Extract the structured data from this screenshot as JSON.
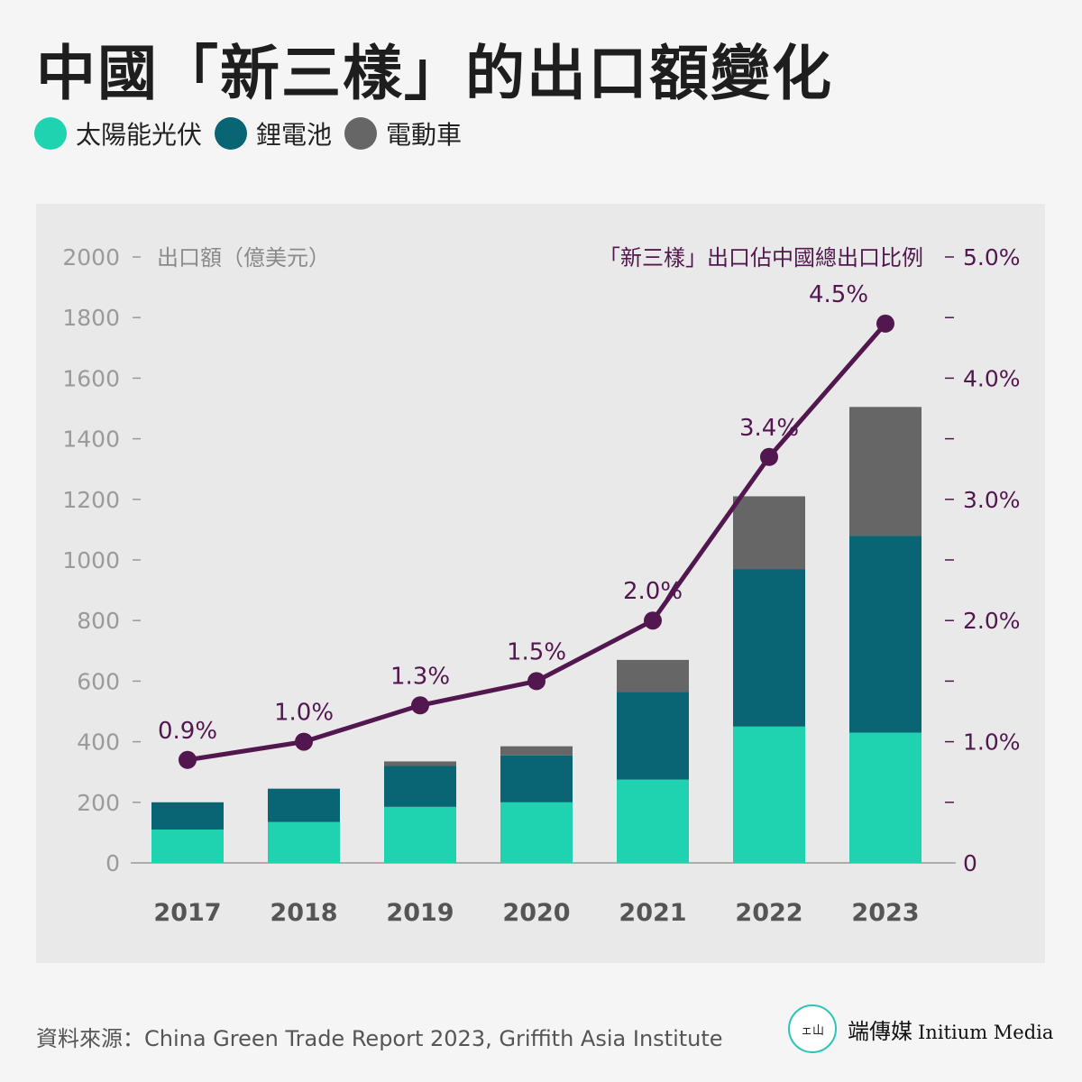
{
  "title": "中國「新三樣」的出口額變化",
  "source": "資料來源：China Green Trade Report 2023, Griffith Asia Institute",
  "brand": {
    "zh": "端傳媒",
    "en": "Initium Media",
    "logo_glyph": "ェ山"
  },
  "legend": [
    {
      "label": "太陽能光伏",
      "color": "#1fd3b1"
    },
    {
      "label": "鋰電池",
      "color": "#096473"
    },
    {
      "label": "電動車",
      "color": "#666666"
    }
  ],
  "chart_data": {
    "type": "bar",
    "stacked": true,
    "categories": [
      "2017",
      "2018",
      "2019",
      "2020",
      "2021",
      "2022",
      "2023"
    ],
    "series": [
      {
        "name": "太陽能光伏",
        "color": "#1fd3b1",
        "values": [
          110,
          135,
          185,
          200,
          275,
          450,
          430
        ]
      },
      {
        "name": "鋰電池",
        "color": "#096473",
        "values": [
          90,
          110,
          135,
          155,
          290,
          520,
          650
        ]
      },
      {
        "name": "電動車",
        "color": "#666666",
        "values": [
          0,
          0,
          15,
          30,
          105,
          240,
          425
        ]
      }
    ],
    "ylabel": "出口額（億美元）",
    "ylim": [
      0,
      2000
    ],
    "yticks": [
      "0",
      "200",
      "400",
      "600",
      "800",
      "1000",
      "1200",
      "1400",
      "1600",
      "1800",
      "2000"
    ],
    "line": {
      "name": "「新三樣」出口佔中國總出口比例",
      "color": "#53174f",
      "values": [
        0.85,
        1.0,
        1.3,
        1.5,
        2.0,
        3.35,
        4.45
      ],
      "labels": [
        "0.9%",
        "1.0%",
        "1.3%",
        "1.5%",
        "2.0%",
        "3.4%",
        "4.5%"
      ],
      "y2lim": [
        0,
        5
      ],
      "y2ticks": [
        {
          "value": 0,
          "label": "0"
        },
        {
          "value": 0.5,
          "label": ""
        },
        {
          "value": 1.0,
          "label": "1.0%"
        },
        {
          "value": 1.5,
          "label": ""
        },
        {
          "value": 2.0,
          "label": "2.0%"
        },
        {
          "value": 2.5,
          "label": ""
        },
        {
          "value": 3.0,
          "label": "3.0%"
        },
        {
          "value": 3.5,
          "label": ""
        },
        {
          "value": 4.0,
          "label": "4.0%"
        },
        {
          "value": 4.5,
          "label": ""
        },
        {
          "value": 5.0,
          "label": "5.0%"
        }
      ]
    },
    "grid": false
  }
}
